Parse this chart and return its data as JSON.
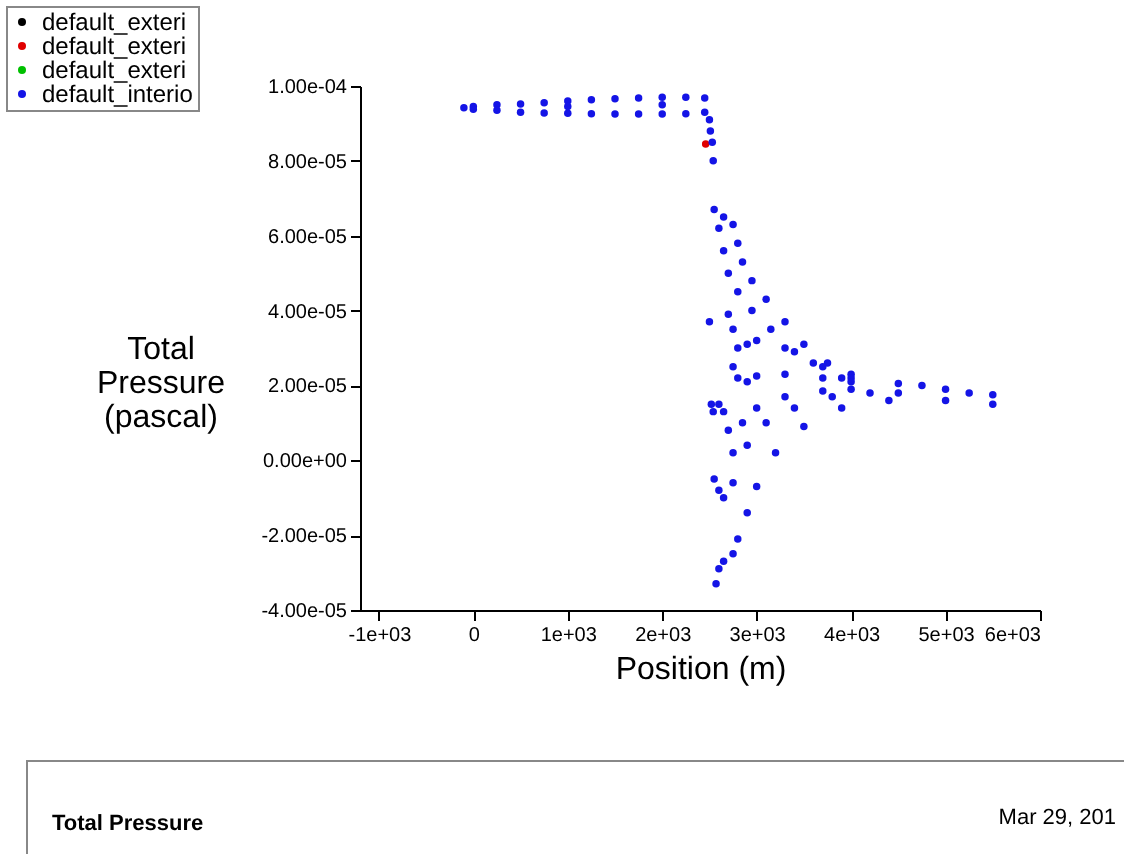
{
  "chart_data": {
    "type": "scatter",
    "xlabel": "Position (m)",
    "ylabel": "Total Pressure (pascal)",
    "annotations": [
      "Total Pressure",
      "Mar 29, 201"
    ],
    "xlim": [
      -1200,
      6000
    ],
    "ylim": [
      -4e-05,
      0.0001
    ],
    "xticks": [
      {
        "value": -1000,
        "label": "-1e+03"
      },
      {
        "value": 0,
        "label": "0"
      },
      {
        "value": 1000,
        "label": "1e+03"
      },
      {
        "value": 2000,
        "label": "2e+03"
      },
      {
        "value": 3000,
        "label": "3e+03"
      },
      {
        "value": 4000,
        "label": "4e+03"
      },
      {
        "value": 5000,
        "label": "5e+03"
      },
      {
        "value": 6000,
        "label": "6e+03"
      }
    ],
    "yticks": [
      {
        "value": -4e-05,
        "label": "-4.00e-05"
      },
      {
        "value": -2e-05,
        "label": "-2.00e-05"
      },
      {
        "value": 0,
        "label": "0.00e+00"
      },
      {
        "value": 2e-05,
        "label": "2.00e-05"
      },
      {
        "value": 4e-05,
        "label": "4.00e-05"
      },
      {
        "value": 6e-05,
        "label": "6.00e-05"
      },
      {
        "value": 8e-05,
        "label": "8.00e-05"
      },
      {
        "value": 0.0001,
        "label": "1.00e-04"
      }
    ],
    "grid": false,
    "legend": "top left",
    "marker": "circle",
    "series": [
      {
        "name": "default_exteri",
        "color": "#000000"
      },
      {
        "name": "default_exteri",
        "color": "#e00000",
        "x": [
          2460
        ],
        "values": [
          8.45e-05
        ]
      },
      {
        "name": "default_exteri",
        "color": "#00c000"
      },
      {
        "name": "default_interio",
        "color": "#1414e6",
        "x": [
          -100,
          0,
          250,
          500,
          750,
          1000,
          1250,
          1500,
          1750,
          2000,
          2250,
          2450,
          0,
          250,
          500,
          750,
          1000,
          1250,
          1500,
          1750,
          2000,
          2250,
          2450,
          1000,
          2000,
          2500,
          2510,
          2530,
          2540,
          2550,
          2650,
          2750,
          2800,
          2850,
          2950,
          3100,
          3300,
          3500,
          3750,
          4000,
          4500,
          5000,
          5500,
          2600,
          2650,
          2700,
          2800,
          2950,
          3150,
          3400,
          3700,
          4000,
          4750,
          5250,
          2700,
          2750,
          2800,
          2900,
          3000,
          3300,
          3600,
          3900,
          2750,
          2800,
          2900,
          3000,
          3300,
          3700,
          4000,
          2600,
          2650,
          2700,
          2750,
          2850,
          3000,
          3300,
          3700,
          4000,
          4500,
          2550,
          2600,
          2650,
          2750,
          2900,
          3100,
          3400,
          3800,
          4200,
          2570,
          2600,
          2650,
          2750,
          2800,
          2900,
          3000,
          3200,
          3500,
          3900,
          4400,
          5000,
          5500,
          2500,
          2520,
          2540
        ],
        "values": [
          9.42e-05,
          9.45e-05,
          9.5e-05,
          9.52e-05,
          9.55e-05,
          9.6e-05,
          9.63e-05,
          9.66e-05,
          9.68e-05,
          9.7e-05,
          9.7e-05,
          9.68e-05,
          9.38e-05,
          9.35e-05,
          9.3e-05,
          9.28e-05,
          9.27e-05,
          9.26e-05,
          9.25e-05,
          9.25e-05,
          9.25e-05,
          9.26e-05,
          9.3e-05,
          9.45e-05,
          9.5e-05,
          9.1e-05,
          8.8e-05,
          8.5e-05,
          8e-05,
          6.7e-05,
          6.5e-05,
          6.3e-05,
          5.8e-05,
          5.3e-05,
          4.8e-05,
          4.3e-05,
          3.7e-05,
          3.1e-05,
          2.6e-05,
          2.3e-05,
          2.05e-05,
          1.9e-05,
          1.75e-05,
          6.2e-05,
          5.6e-05,
          5e-05,
          4.5e-05,
          4e-05,
          3.5e-05,
          2.9e-05,
          2.5e-05,
          2.2e-05,
          2e-05,
          1.8e-05,
          3.9e-05,
          3.5e-05,
          3e-05,
          3.1e-05,
          3.2e-05,
          3e-05,
          2.6e-05,
          2.2e-05,
          2.5e-05,
          2.2e-05,
          2.1e-05,
          2.25e-05,
          2.3e-05,
          2.2e-05,
          2.1e-05,
          1.5e-05,
          1.3e-05,
          8e-06,
          2e-06,
          1e-05,
          1.4e-05,
          1.7e-05,
          1.85e-05,
          1.9e-05,
          1.8e-05,
          -5e-06,
          -8e-06,
          -1e-05,
          -6e-06,
          4e-06,
          1e-05,
          1.4e-05,
          1.7e-05,
          1.8e-05,
          -3.3e-05,
          -2.9e-05,
          -2.7e-05,
          -2.5e-05,
          -2.1e-05,
          -1.4e-05,
          -7e-06,
          2e-06,
          9e-06,
          1.4e-05,
          1.6e-05,
          1.6e-05,
          1.5e-05,
          3.7e-05,
          1.5e-05,
          1.3e-05
        ]
      }
    ]
  }
}
